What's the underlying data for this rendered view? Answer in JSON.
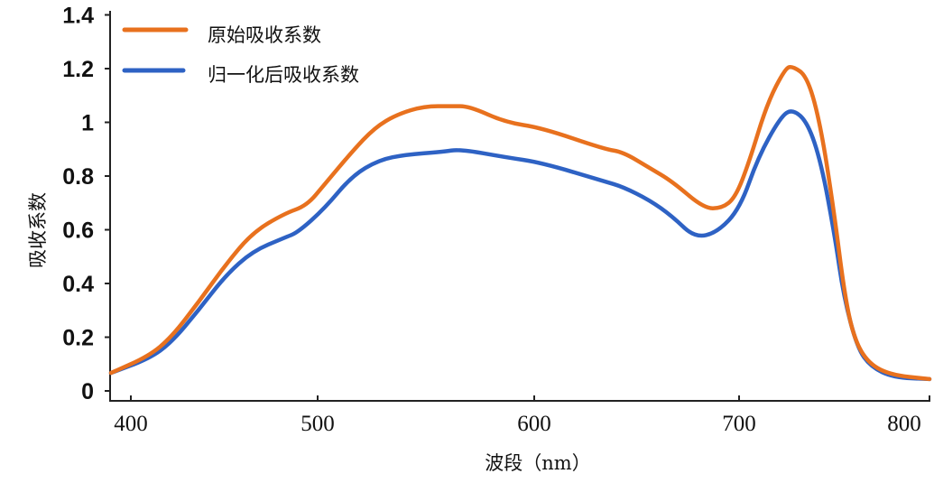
{
  "chart_data": {
    "type": "line",
    "title": "",
    "xlabel": "波段（nm）",
    "ylabel": "吸收系数",
    "xlim": [
      389,
      800
    ],
    "ylim": [
      0,
      1.4
    ],
    "grid": false,
    "legend_position": "top-left",
    "x_ticks": [
      400,
      500,
      600,
      700,
      800
    ],
    "x_tick_labels": [
      "400",
      "500",
      "600",
      "700",
      "800"
    ],
    "y_ticks": [
      0,
      0.2,
      0.4,
      0.6,
      0.8,
      1,
      1.2,
      1.4
    ],
    "y_tick_labels": [
      "0",
      "0.2",
      "0.4",
      "0.6",
      "0.8",
      "1",
      "1.2",
      "1.4"
    ],
    "series": [
      {
        "name": "原始吸收系数",
        "color": "#E8711E",
        "x": [
          389.4,
          409.7,
          421.7,
          436.2,
          450.7,
          465.2,
          482.1,
          494.2,
          503.3,
          515.8,
          526.3,
          536.7,
          549.2,
          561.7,
          570,
          586.7,
          603.5,
          634.4,
          643.2,
          656.4,
          667.4,
          682.8,
          691.6,
          698.2,
          705.2,
          714.7,
          724.2,
          728,
          736,
          743.1,
          750.2,
          755,
          759.7,
          766.8,
          778.7,
          800
        ],
        "y": [
          0.067,
          0.13,
          0.2,
          0.33,
          0.47,
          0.59,
          0.66,
          0.69,
          0.77,
          0.89,
          0.98,
          1.03,
          1.06,
          1.06,
          1.06,
          1.0,
          0.98,
          0.9,
          0.89,
          0.83,
          0.78,
          0.68,
          0.68,
          0.72,
          0.85,
          1.07,
          1.2,
          1.21,
          1.17,
          0.98,
          0.65,
          0.38,
          0.21,
          0.11,
          0.06,
          0.044
        ]
      },
      {
        "name": "归一化后吸收系数",
        "color": "#2E62C4",
        "x": [
          389.4,
          409.7,
          421.7,
          436.2,
          450.7,
          465.2,
          482.1,
          489.4,
          503.3,
          515.8,
          528.3,
          540.8,
          557.5,
          565.8,
          586.7,
          603.5,
          634.4,
          643.2,
          656.4,
          667.4,
          678.4,
          689.4,
          700.5,
          710,
          721.8,
          728,
          736,
          743.1,
          750.2,
          755,
          762.1,
          769.2,
          781,
          800
        ],
        "y": [
          0.067,
          0.12,
          0.18,
          0.3,
          0.43,
          0.52,
          0.57,
          0.59,
          0.68,
          0.8,
          0.86,
          0.88,
          0.89,
          0.9,
          0.87,
          0.85,
          0.78,
          0.76,
          0.71,
          0.65,
          0.57,
          0.59,
          0.68,
          0.87,
          1.02,
          1.05,
          1.0,
          0.85,
          0.58,
          0.35,
          0.16,
          0.09,
          0.05,
          0.044
        ]
      }
    ]
  }
}
